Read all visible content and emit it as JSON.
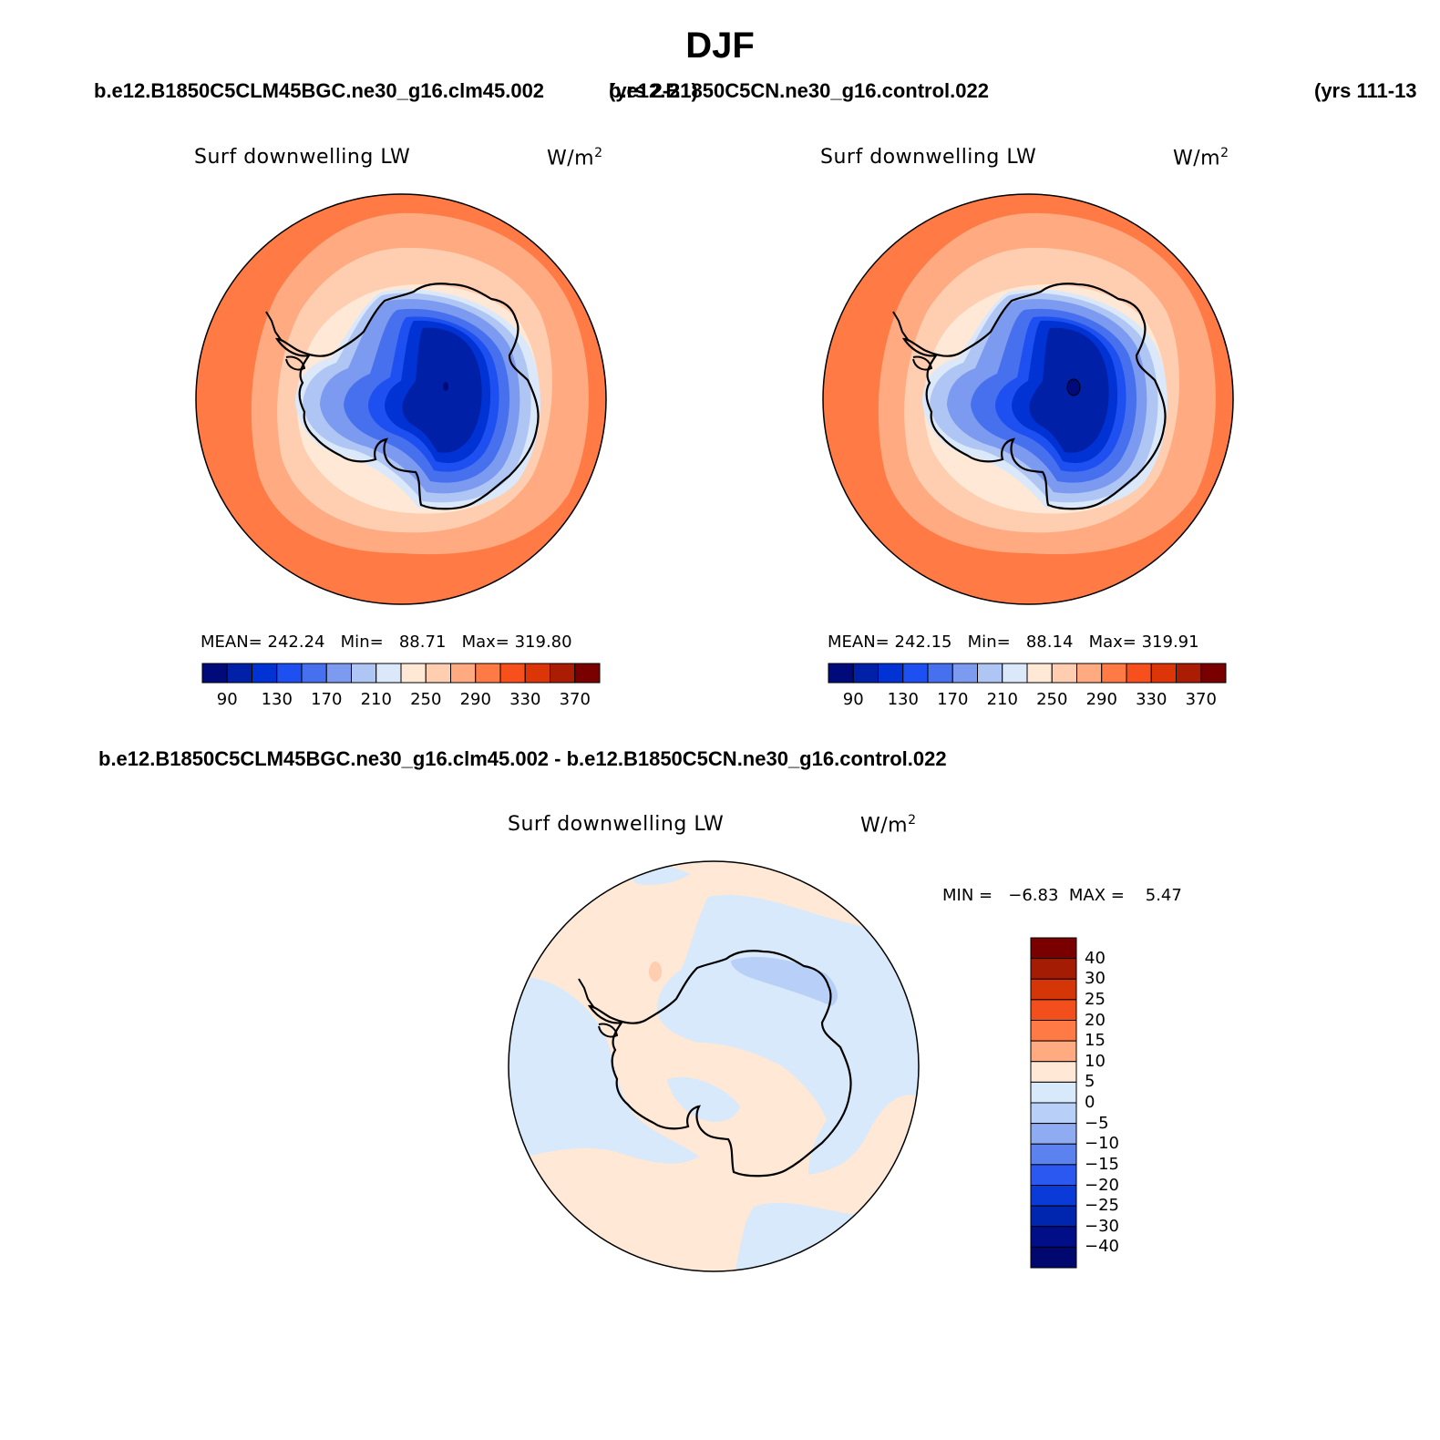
{
  "season": "DJF",
  "header": {
    "case1": "b.e12.B1850C5CLM45BGC.ne30_g16.clm45.002",
    "years1": "(yrs 2-21)",
    "case2": "b.e12.B1850C5CN.ne30_g16.control.022",
    "years2": "(yrs 111-13"
  },
  "panels": [
    {
      "variable": "Surf downwelling LW",
      "units": "W/m",
      "units_sup": "2",
      "stats": {
        "mean_label": "MEAN=",
        "mean": "242.24",
        "min_label": "Min=",
        "min": "88.71",
        "max_label": "Max=",
        "max": "319.80"
      }
    },
    {
      "variable": "Surf downwelling LW",
      "units": "W/m",
      "units_sup": "2",
      "stats": {
        "mean_label": "MEAN=",
        "mean": "242.15",
        "min_label": "Min=",
        "min": "88.14",
        "max_label": "Max=",
        "max": "319.91"
      }
    }
  ],
  "colorbar": {
    "ticks": [
      "90",
      "130",
      "170",
      "210",
      "250",
      "290",
      "330",
      "370"
    ],
    "colors": [
      "#000a7a",
      "#0020a8",
      "#0032d4",
      "#1e4ff0",
      "#4670ee",
      "#7c9af0",
      "#afc6f5",
      "#dbe8fa",
      "#ffe8d5",
      "#ffcdb0",
      "#ffaa80",
      "#ff7a45",
      "#f8501c",
      "#dc3608",
      "#ab1c04",
      "#7a0000"
    ]
  },
  "diff": {
    "title": "b.e12.B1850C5CLM45BGC.ne30_g16.clm45.002 - b.e12.B1850C5CN.ne30_g16.control.022",
    "variable": "Surf downwelling LW",
    "units": "W/m",
    "units_sup": "2",
    "minmax": "MIN =   −6.83  MAX =    5.47",
    "legend_labels": [
      "40",
      "30",
      "25",
      "20",
      "15",
      "10",
      "5",
      "0",
      "−5",
      "−10",
      "−15",
      "−20",
      "−25",
      "−30",
      "−40"
    ],
    "legend_colors": [
      "#7a0000",
      "#a51c04",
      "#d53608",
      "#f24f1c",
      "#ff7a45",
      "#ffaa80",
      "#ffe8d5",
      "#d7e9fb",
      "#b8cff7",
      "#8fabf2",
      "#5b82ee",
      "#2a58f0",
      "#0a3ad8",
      "#0026b0",
      "#000e88",
      "#000870"
    ]
  }
}
